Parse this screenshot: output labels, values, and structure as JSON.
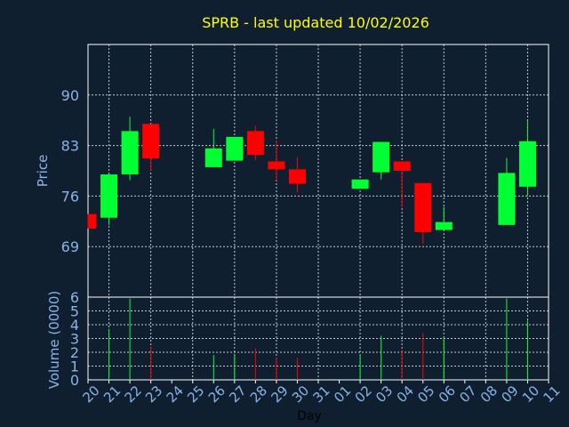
{
  "chart_data": {
    "type": "candlestick",
    "title": "SPRB - last updated 10/02/2026",
    "xlabel": "Day",
    "price_panel": {
      "ylabel": "Price",
      "yticks": [
        69,
        76,
        83,
        90
      ],
      "ylim": [
        62,
        97
      ]
    },
    "volume_panel": {
      "ylabel": "Volume (0000)",
      "yticks": [
        0,
        1,
        2,
        3,
        4,
        5,
        6
      ],
      "ylim": [
        0,
        6
      ]
    },
    "x_ticks": [
      "20",
      "21",
      "22",
      "23",
      "24",
      "25",
      "26",
      "27",
      "28",
      "29",
      "30",
      "31",
      "01",
      "02",
      "03",
      "04",
      "05",
      "06",
      "07",
      "08",
      "09",
      "10",
      "11"
    ],
    "candles": [
      {
        "day": "20",
        "open": 73.5,
        "close": 71.5,
        "high": 73.5,
        "low": 71.5,
        "volume": 0
      },
      {
        "day": "21",
        "open": 73,
        "close": 79,
        "high": 79,
        "low": 72,
        "volume": 3.7
      },
      {
        "day": "22",
        "open": 79,
        "close": 85,
        "high": 87,
        "low": 78.2,
        "volume": 5.9
      },
      {
        "day": "23",
        "open": 86,
        "close": 81.2,
        "high": 86,
        "low": 79.5,
        "volume": 2.4
      },
      {
        "day": "26",
        "open": 80,
        "close": 82.6,
        "high": 85.3,
        "low": 80,
        "volume": 1.8
      },
      {
        "day": "27",
        "open": 80.9,
        "close": 84.2,
        "high": 84.2,
        "low": 80.9,
        "volume": 1.8
      },
      {
        "day": "28",
        "open": 85,
        "close": 81.7,
        "high": 85.7,
        "low": 81,
        "volume": 2.3
      },
      {
        "day": "29",
        "open": 80.8,
        "close": 79.7,
        "high": 83.7,
        "low": 78.2,
        "volume": 1.6
      },
      {
        "day": "30",
        "open": 79.7,
        "close": 77.7,
        "high": 81.4,
        "low": 76.5,
        "volume": 1.6
      },
      {
        "day": "02",
        "open": 77,
        "close": 78.3,
        "high": 78.3,
        "low": 77,
        "volume": 1.8
      },
      {
        "day": "03",
        "open": 79.3,
        "close": 83.5,
        "high": 83.5,
        "low": 78.3,
        "volume": 3.2
      },
      {
        "day": "04",
        "open": 80.8,
        "close": 79.5,
        "high": 80.8,
        "low": 74.5,
        "volume": 2.1
      },
      {
        "day": "05",
        "open": 77.8,
        "close": 71,
        "high": 77.8,
        "low": 69.4,
        "volume": 3.4
      },
      {
        "day": "06",
        "open": 71.3,
        "close": 72.4,
        "high": 74.5,
        "low": 71.3,
        "volume": 3.1
      },
      {
        "day": "09",
        "open": 72,
        "close": 79.2,
        "high": 81.3,
        "low": 72,
        "volume": 5.9
      },
      {
        "day": "10",
        "open": 77.3,
        "close": 83.6,
        "high": 86.4,
        "low": 76,
        "volume": 4.3
      }
    ],
    "colors": {
      "background": "#0f1f30",
      "up": "#00ff33",
      "down": "#ff0000",
      "title": "#ffff00",
      "axis_text": "#8ab4e6",
      "grid": "#ffffff"
    }
  }
}
